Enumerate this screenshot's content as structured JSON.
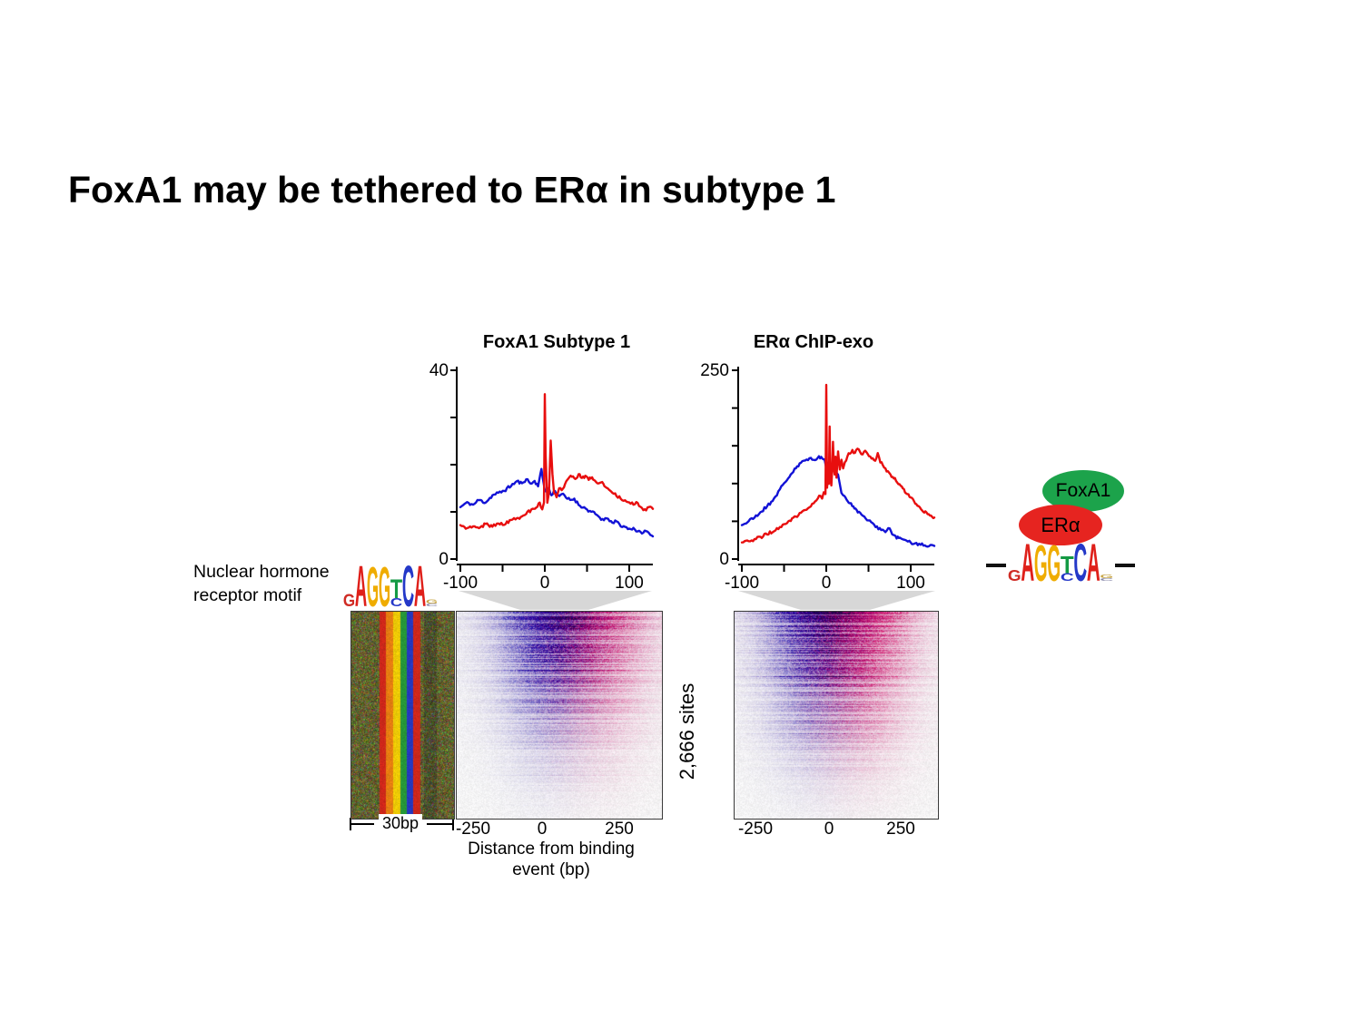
{
  "slide": {
    "title": "FoxA1 may be tethered to ERα in subtype 1"
  },
  "chart_data": [
    {
      "type": "line",
      "title": "FoxA1 Subtype 1",
      "xlabel": "",
      "ylabel": "",
      "xlim": [
        -100,
        128
      ],
      "ylim": [
        0,
        40
      ],
      "x_ticks": [
        -100,
        -50,
        0,
        50,
        100
      ],
      "x_labeled": [
        -100,
        0,
        100
      ],
      "x_tick_labels": [
        "-100",
        "0",
        "100"
      ],
      "y_ticks": [
        0,
        10,
        20,
        30,
        40
      ],
      "y_labeled": [
        0,
        40
      ],
      "y_tick_labels": [
        "0",
        "40"
      ],
      "legend": "none",
      "series": [
        {
          "name": "blue-strand",
          "color": "#1212d6",
          "anchors": [
            [
              -100,
              11
            ],
            [
              -92,
              12
            ],
            [
              -85,
              11.5
            ],
            [
              -78,
              12.5
            ],
            [
              -70,
              12
            ],
            [
              -62,
              13.5
            ],
            [
              -55,
              14
            ],
            [
              -48,
              14.5
            ],
            [
              -40,
              15.5
            ],
            [
              -33,
              16.5
            ],
            [
              -27,
              16
            ],
            [
              -22,
              17
            ],
            [
              -17,
              16
            ],
            [
              -12,
              16.5
            ],
            [
              -8,
              15.5
            ],
            [
              -4,
              19
            ],
            [
              0,
              14.5
            ],
            [
              4,
              15
            ],
            [
              8,
              13.5
            ],
            [
              12,
              14.5
            ],
            [
              16,
              13.5
            ],
            [
              20,
              13.8
            ],
            [
              25,
              13
            ],
            [
              30,
              12.5
            ],
            [
              35,
              12.8
            ],
            [
              40,
              11.5
            ],
            [
              45,
              11
            ],
            [
              50,
              10.5
            ],
            [
              55,
              10
            ],
            [
              60,
              9.5
            ],
            [
              65,
              8.8
            ],
            [
              70,
              8.2
            ],
            [
              75,
              8.6
            ],
            [
              80,
              7.6
            ],
            [
              85,
              8
            ],
            [
              90,
              7
            ],
            [
              95,
              6.8
            ],
            [
              100,
              6.4
            ],
            [
              105,
              6.6
            ],
            [
              110,
              5.8
            ],
            [
              115,
              5.5
            ],
            [
              120,
              5.9
            ],
            [
              125,
              5.2
            ],
            [
              128,
              4.8
            ]
          ]
        },
        {
          "name": "red-strand",
          "color": "#e80e0e",
          "anchors": [
            [
              -100,
              7.2
            ],
            [
              -92,
              6.5
            ],
            [
              -85,
              7
            ],
            [
              -78,
              6.6
            ],
            [
              -70,
              7.4
            ],
            [
              -62,
              6.9
            ],
            [
              -55,
              7.6
            ],
            [
              -48,
              7.3
            ],
            [
              -40,
              8.2
            ],
            [
              -33,
              8.6
            ],
            [
              -27,
              9
            ],
            [
              -22,
              9.6
            ],
            [
              -16,
              10.4
            ],
            [
              -10,
              11
            ],
            [
              -6,
              12
            ],
            [
              -3,
              10.5
            ],
            [
              -1,
              12
            ],
            [
              0,
              35
            ],
            [
              1,
              22
            ],
            [
              3,
              12
            ],
            [
              5,
              14
            ],
            [
              7,
              25
            ],
            [
              9,
              18
            ],
            [
              11,
              14
            ],
            [
              14,
              13
            ],
            [
              17,
              15
            ],
            [
              20,
              14.5
            ],
            [
              24,
              16
            ],
            [
              28,
              17
            ],
            [
              32,
              17.5
            ],
            [
              36,
              17
            ],
            [
              40,
              18
            ],
            [
              44,
              17.2
            ],
            [
              48,
              17.6
            ],
            [
              52,
              16.8
            ],
            [
              56,
              17.4
            ],
            [
              60,
              16.6
            ],
            [
              64,
              16
            ],
            [
              68,
              16.4
            ],
            [
              72,
              15.2
            ],
            [
              76,
              14.6
            ],
            [
              80,
              14
            ],
            [
              85,
              13.4
            ],
            [
              90,
              12.8
            ],
            [
              95,
              12.4
            ],
            [
              100,
              12
            ],
            [
              105,
              11.6
            ],
            [
              110,
              11.9
            ],
            [
              115,
              10.8
            ],
            [
              120,
              10.4
            ],
            [
              125,
              11
            ],
            [
              128,
              10.6
            ]
          ]
        }
      ]
    },
    {
      "type": "line",
      "title": "ERα ChIP-exo",
      "xlabel": "",
      "ylabel": "",
      "xlim": [
        -100,
        128
      ],
      "ylim": [
        0,
        250
      ],
      "x_ticks": [
        -100,
        -50,
        0,
        50,
        100
      ],
      "x_labeled": [
        -100,
        0,
        100
      ],
      "x_tick_labels": [
        "-100",
        "0",
        "100"
      ],
      "y_ticks": [
        0,
        50,
        100,
        150,
        200,
        250
      ],
      "y_labeled": [
        0,
        250
      ],
      "y_tick_labels": [
        "0",
        "250"
      ],
      "legend": "none",
      "series": [
        {
          "name": "blue-strand",
          "color": "#1212d6",
          "anchors": [
            [
              -100,
              45
            ],
            [
              -92,
              50
            ],
            [
              -85,
              55
            ],
            [
              -78,
              62
            ],
            [
              -70,
              70
            ],
            [
              -62,
              80
            ],
            [
              -55,
              92
            ],
            [
              -48,
              103
            ],
            [
              -42,
              112
            ],
            [
              -36,
              120
            ],
            [
              -30,
              127
            ],
            [
              -25,
              131
            ],
            [
              -20,
              134
            ],
            [
              -15,
              131
            ],
            [
              -10,
              134
            ],
            [
              -6,
              136
            ],
            [
              -2,
              132
            ],
            [
              0,
              120
            ],
            [
              2,
              128
            ],
            [
              4,
              115
            ],
            [
              6,
              125
            ],
            [
              8,
              118
            ],
            [
              10,
              122
            ],
            [
              12,
              115
            ],
            [
              14,
              112
            ],
            [
              16,
              100
            ],
            [
              18,
              88
            ],
            [
              20,
              84
            ],
            [
              24,
              79
            ],
            [
              28,
              74
            ],
            [
              32,
              70
            ],
            [
              36,
              65
            ],
            [
              40,
              61
            ],
            [
              45,
              56
            ],
            [
              50,
              51
            ],
            [
              55,
              47
            ],
            [
              60,
              43
            ],
            [
              65,
              39
            ],
            [
              70,
              36
            ],
            [
              75,
              41
            ],
            [
              78,
              33
            ],
            [
              82,
              30
            ],
            [
              86,
              28
            ],
            [
              90,
              26
            ],
            [
              95,
              24
            ],
            [
              100,
              22
            ],
            [
              105,
              21
            ],
            [
              110,
              20
            ],
            [
              115,
              18
            ],
            [
              120,
              17
            ],
            [
              125,
              19
            ],
            [
              128,
              18
            ]
          ]
        },
        {
          "name": "red-strand",
          "color": "#e80e0e",
          "anchors": [
            [
              -100,
              22
            ],
            [
              -92,
              24
            ],
            [
              -85,
              26
            ],
            [
              -78,
              29
            ],
            [
              -70,
              33
            ],
            [
              -62,
              37
            ],
            [
              -55,
              42
            ],
            [
              -48,
              47
            ],
            [
              -42,
              51
            ],
            [
              -36,
              56
            ],
            [
              -30,
              61
            ],
            [
              -25,
              65
            ],
            [
              -20,
              69
            ],
            [
              -15,
              74
            ],
            [
              -10,
              80
            ],
            [
              -7,
              84
            ],
            [
              -5,
              80
            ],
            [
              -3,
              88
            ],
            [
              -1,
              86
            ],
            [
              0,
              230
            ],
            [
              1,
              95
            ],
            [
              2,
              120
            ],
            [
              3,
              100
            ],
            [
              4,
              175
            ],
            [
              5,
              105
            ],
            [
              6,
              98
            ],
            [
              7,
              118
            ],
            [
              8,
              155
            ],
            [
              9,
              120
            ],
            [
              10,
              112
            ],
            [
              11,
              135
            ],
            [
              12,
              108
            ],
            [
              14,
              142
            ],
            [
              16,
              118
            ],
            [
              18,
              132
            ],
            [
              20,
              120
            ],
            [
              22,
              128
            ],
            [
              25,
              136
            ],
            [
              28,
              140
            ],
            [
              31,
              144
            ],
            [
              34,
              141
            ],
            [
              37,
              146
            ],
            [
              40,
              142
            ],
            [
              43,
              138
            ],
            [
              46,
              143
            ],
            [
              49,
              139
            ],
            [
              52,
              136
            ],
            [
              55,
              133
            ],
            [
              58,
              130
            ],
            [
              61,
              140
            ],
            [
              64,
              128
            ],
            [
              67,
              124
            ],
            [
              70,
              120
            ],
            [
              73,
              116
            ],
            [
              76,
              112
            ],
            [
              80,
              107
            ],
            [
              84,
              102
            ],
            [
              88,
              97
            ],
            [
              92,
              92
            ],
            [
              96,
              86
            ],
            [
              100,
              82
            ],
            [
              104,
              76
            ],
            [
              108,
              71
            ],
            [
              112,
              66
            ],
            [
              116,
              62
            ],
            [
              120,
              59
            ],
            [
              124,
              57
            ],
            [
              128,
              55
            ]
          ]
        }
      ]
    }
  ],
  "motif_panel": {
    "label_line1": "Nuclear hormone",
    "label_line2": "receptor motif",
    "logo_letters": [
      {
        "parts": [
          {
            "c": "G",
            "color": "#cf2b24",
            "h": 0.3
          }
        ]
      },
      {
        "parts": [
          {
            "c": "A",
            "color": "#df201a",
            "h": 1.0
          }
        ]
      },
      {
        "parts": [
          {
            "c": "G",
            "color": "#efac00",
            "h": 0.97
          }
        ]
      },
      {
        "parts": [
          {
            "c": "G",
            "color": "#efac00",
            "h": 0.97
          }
        ]
      },
      {
        "parts": [
          {
            "c": "T",
            "color": "#149a44",
            "h": 0.46
          },
          {
            "c": "C",
            "color": "#2438c8",
            "h": 0.2
          }
        ]
      },
      {
        "parts": [
          {
            "c": "C",
            "color": "#2438c8",
            "h": 1.0
          }
        ]
      },
      {
        "parts": [
          {
            "c": "A",
            "color": "#df201a",
            "h": 1.0
          }
        ]
      },
      {
        "parts": [
          {
            "c": "G",
            "color": "#c9a84c",
            "h": 0.1
          },
          {
            "c": "C",
            "color": "#8888aa",
            "h": 0.07
          }
        ]
      }
    ]
  },
  "heatmaps": {
    "sites_label": "2,666 sites",
    "motif": {
      "scale_label": "30bp"
    },
    "foxa1": {
      "x_tick_labels": [
        "-250",
        "0",
        "250"
      ]
    },
    "era": {
      "x_tick_labels": [
        "-250",
        "0",
        "250"
      ]
    },
    "xlabel_line1": "Distance from binding",
    "xlabel_line2": "event (bp)"
  },
  "model_diagram": {
    "foxa1_label": "FoxA1",
    "foxa1_color": "#1ca34b",
    "era_label": "ERα",
    "era_color": "#e62420"
  }
}
